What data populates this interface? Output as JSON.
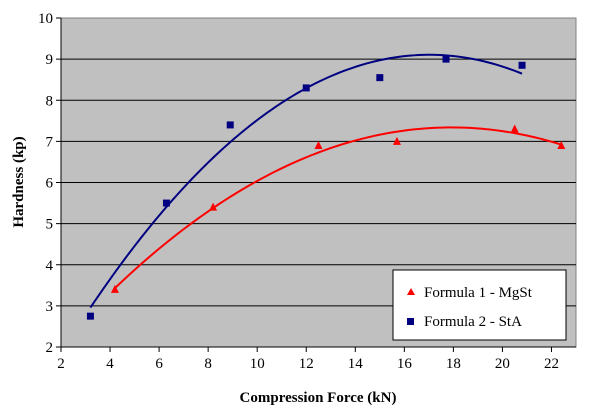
{
  "chart_data": {
    "type": "scatter",
    "title": "",
    "xlabel": "Compression Force (kN)",
    "ylabel": "Hardness (kp)",
    "xlim": [
      2,
      23
    ],
    "ylim": [
      2,
      10
    ],
    "xticks": [
      2,
      4,
      6,
      8,
      10,
      12,
      14,
      16,
      18,
      20,
      22
    ],
    "yticks": [
      2,
      3,
      4,
      5,
      6,
      7,
      8,
      9,
      10
    ],
    "grid": "horizontal",
    "legend_position": "bottom-right",
    "plot_background": "#c0c0c0",
    "series": [
      {
        "name": "Formula 1 - MgSt",
        "color": "#ff0000",
        "marker": "triangle",
        "trendline": "polynomial-2",
        "points": [
          [
            4.2,
            3.4
          ],
          [
            8.2,
            5.4
          ],
          [
            12.5,
            6.9
          ],
          [
            15.7,
            7.0
          ],
          [
            20.5,
            7.3
          ],
          [
            22.4,
            6.9
          ]
        ]
      },
      {
        "name": "Formula 2 - StA",
        "color": "#000080",
        "marker": "square",
        "trendline": "polynomial-2",
        "points": [
          [
            3.2,
            2.75
          ],
          [
            6.3,
            5.5
          ],
          [
            8.9,
            7.4
          ],
          [
            12.0,
            8.3
          ],
          [
            15.0,
            8.55
          ],
          [
            17.7,
            9.0
          ],
          [
            20.8,
            8.85
          ]
        ]
      }
    ]
  }
}
